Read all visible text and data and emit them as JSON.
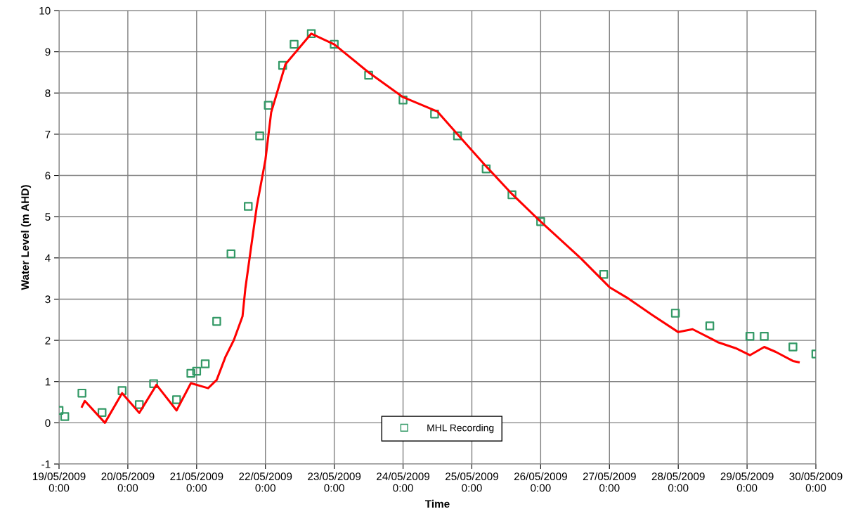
{
  "chart_data": {
    "type": "line",
    "xlabel": "Time",
    "ylabel": "Water Level (m AHD)",
    "ylim": [
      -1,
      10
    ],
    "yticks": [
      -1,
      0,
      1,
      2,
      3,
      4,
      5,
      6,
      7,
      8,
      9,
      10
    ],
    "xlim": [
      "2009-05-19T00:00",
      "2009-05-30T00:00"
    ],
    "xticks": [
      {
        "value": "2009-05-19T00:00",
        "label": "19/05/2009\n0:00"
      },
      {
        "value": "2009-05-20T00:00",
        "label": "20/05/2009\n0:00"
      },
      {
        "value": "2009-05-21T00:00",
        "label": "21/05/2009\n0:00"
      },
      {
        "value": "2009-05-22T00:00",
        "label": "22/05/2009\n0:00"
      },
      {
        "value": "2009-05-23T00:00",
        "label": "23/05/2009\n0:00"
      },
      {
        "value": "2009-05-24T00:00",
        "label": "24/05/2009\n0:00"
      },
      {
        "value": "2009-05-25T00:00",
        "label": "25/05/2009\n0:00"
      },
      {
        "value": "2009-05-26T00:00",
        "label": "26/05/2009\n0:00"
      },
      {
        "value": "2009-05-27T00:00",
        "label": "27/05/2009\n0:00"
      },
      {
        "value": "2009-05-28T00:00",
        "label": "28/05/2009\n0:00"
      },
      {
        "value": "2009-05-29T00:00",
        "label": "29/05/2009\n0:00"
      },
      {
        "value": "2009-05-30T00:00",
        "label": "30/05/2009\n0:00"
      }
    ],
    "grid": true,
    "legend": "bottom",
    "series": [
      {
        "name": "MHL Recording",
        "type": "scatter",
        "marker": "square",
        "color": "#339966",
        "x": [
          "2009-05-19T00:00",
          "2009-05-19T02:00",
          "2009-05-19T08:00",
          "2009-05-19T15:00",
          "2009-05-19T22:00",
          "2009-05-20T04:00",
          "2009-05-20T09:00",
          "2009-05-20T17:00",
          "2009-05-20T22:00",
          "2009-05-21T00:00",
          "2009-05-21T03:00",
          "2009-05-21T07:00",
          "2009-05-21T12:00",
          "2009-05-21T18:00",
          "2009-05-21T22:00",
          "2009-05-22T01:00",
          "2009-05-22T06:00",
          "2009-05-22T10:00",
          "2009-05-22T16:00",
          "2009-05-23T00:00",
          "2009-05-23T12:00",
          "2009-05-24T00:00",
          "2009-05-24T11:00",
          "2009-05-24T19:00",
          "2009-05-25T05:00",
          "2009-05-25T14:00",
          "2009-05-26T00:00",
          "2009-05-26T22:00",
          "2009-05-27T23:00",
          "2009-05-28T11:00",
          "2009-05-29T01:00",
          "2009-05-29T06:00",
          "2009-05-29T16:00",
          "2009-05-30T00:00"
        ],
        "values": [
          0.3,
          0.15,
          0.72,
          0.25,
          0.78,
          0.44,
          0.95,
          0.56,
          1.2,
          1.25,
          1.43,
          2.46,
          4.1,
          5.25,
          6.96,
          7.7,
          8.67,
          9.18,
          9.44,
          9.18,
          8.43,
          7.83,
          7.49,
          6.96,
          6.16,
          5.53,
          4.88,
          3.6,
          2.66,
          2.35,
          2.1,
          2.1,
          1.84,
          1.67
        ]
      },
      {
        "line_style": "solid",
        "color": "#ff0000",
        "x": [
          "2009-05-19T08:00",
          "2009-05-19T09:00",
          "2009-05-19T16:00",
          "2009-05-19T22:00",
          "2009-05-20T04:00",
          "2009-05-20T10:00",
          "2009-05-20T17:00",
          "2009-05-20T22:00",
          "2009-05-21T04:00",
          "2009-05-21T07:00",
          "2009-05-21T10:00",
          "2009-05-21T13:00",
          "2009-05-21T16:00",
          "2009-05-21T17:00",
          "2009-05-21T21:00",
          "2009-05-22T00:00",
          "2009-05-22T02:00",
          "2009-05-22T07:00",
          "2009-05-22T16:00",
          "2009-05-23T00:00",
          "2009-05-23T12:00",
          "2009-05-24T00:00",
          "2009-05-24T12:00",
          "2009-05-24T19:00",
          "2009-05-25T05:00",
          "2009-05-25T14:00",
          "2009-05-26T00:00",
          "2009-05-26T14:00",
          "2009-05-27T00:00",
          "2009-05-27T06:00",
          "2009-05-27T15:00",
          "2009-05-28T00:00",
          "2009-05-28T05:00",
          "2009-05-28T14:00",
          "2009-05-28T20:00",
          "2009-05-29T01:00",
          "2009-05-29T06:00",
          "2009-05-29T10:00",
          "2009-05-29T16:00",
          "2009-05-29T18:00"
        ],
        "values": [
          0.39,
          0.53,
          0.0,
          0.72,
          0.24,
          0.92,
          0.3,
          0.96,
          0.84,
          1.04,
          1.59,
          2.01,
          2.58,
          3.26,
          5.26,
          6.38,
          7.53,
          8.7,
          9.44,
          9.18,
          8.5,
          7.9,
          7.55,
          7.0,
          6.22,
          5.55,
          4.88,
          3.99,
          3.29,
          3.04,
          2.61,
          2.2,
          2.27,
          1.95,
          1.81,
          1.64,
          1.84,
          1.72,
          1.5,
          1.47
        ]
      }
    ]
  }
}
